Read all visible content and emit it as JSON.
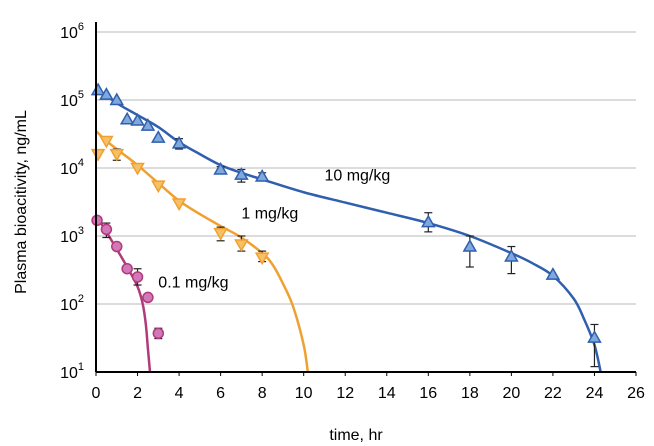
{
  "chart_data": {
    "type": "scatter",
    "title": "",
    "xlabel": "time, hr",
    "ylabel": "Plasma bioacitivity, ng/mL",
    "xlim": [
      0,
      26
    ],
    "ylim": [
      10,
      1000000
    ],
    "yscale": "log",
    "x_ticks": [
      "0",
      "2",
      "4",
      "6",
      "8",
      "10",
      "12",
      "14",
      "16",
      "18",
      "20",
      "22",
      "24",
      "26"
    ],
    "y_ticks": [
      {
        "base": "10",
        "exp": "1",
        "value": 10
      },
      {
        "base": "10",
        "exp": "2",
        "value": 100
      },
      {
        "base": "10",
        "exp": "3",
        "value": 1000
      },
      {
        "base": "10",
        "exp": "4",
        "value": 10000
      },
      {
        "base": "10",
        "exp": "5",
        "value": 100000
      },
      {
        "base": "10",
        "exp": "6",
        "value": 1000000
      }
    ],
    "grid": "horizontal",
    "series": [
      {
        "name": "10 mg/kg",
        "color": "#2f5fae",
        "marker": "triangle-up",
        "marker_fill": "#7fa8dc",
        "points": [
          {
            "x": 0.1,
            "y": 140000
          },
          {
            "x": 0.5,
            "y": 120000
          },
          {
            "x": 1,
            "y": 100000
          },
          {
            "x": 1.5,
            "y": 52000
          },
          {
            "x": 2,
            "y": 50000
          },
          {
            "x": 2.5,
            "y": 42000
          },
          {
            "x": 3,
            "y": 28000
          },
          {
            "x": 4,
            "y": 23000,
            "err_lo": 19000,
            "err_hi": 27000
          },
          {
            "x": 6,
            "y": 9500,
            "err_lo": 8500,
            "err_hi": 10500
          },
          {
            "x": 7,
            "y": 8000,
            "err_lo": 6200,
            "err_hi": 9500
          },
          {
            "x": 8,
            "y": 7500,
            "err_lo": 6500,
            "err_hi": 8500
          },
          {
            "x": 16,
            "y": 1600,
            "err_lo": 1150,
            "err_hi": 2200
          },
          {
            "x": 18,
            "y": 700,
            "err_lo": 350,
            "err_hi": 1000
          },
          {
            "x": 20,
            "y": 500,
            "err_lo": 280,
            "err_hi": 700
          },
          {
            "x": 22,
            "y": 270
          },
          {
            "x": 24,
            "y": 32,
            "err_lo": 12,
            "err_hi": 50
          }
        ],
        "fit": [
          [
            0,
            150000
          ],
          [
            1,
            90000
          ],
          [
            2,
            60000
          ],
          [
            3,
            40000
          ],
          [
            4,
            24000
          ],
          [
            5,
            16000
          ],
          [
            6,
            11000
          ],
          [
            7,
            8500
          ],
          [
            8,
            6800
          ],
          [
            10,
            4400
          ],
          [
            12,
            3100
          ],
          [
            14,
            2200
          ],
          [
            16,
            1550
          ],
          [
            18,
            1000
          ],
          [
            20,
            560
          ],
          [
            21,
            400
          ],
          [
            22,
            260
          ],
          [
            23,
            120
          ],
          [
            23.5,
            60
          ],
          [
            24,
            25
          ],
          [
            24.3,
            10
          ]
        ]
      },
      {
        "name": "1 mg/kg",
        "color": "#f0a030",
        "marker": "triangle-down",
        "marker_fill": "#f7c065",
        "points": [
          {
            "x": 0.1,
            "y": 16000
          },
          {
            "x": 0.5,
            "y": 25000
          },
          {
            "x": 1,
            "y": 16000,
            "err_lo": 13000,
            "err_hi": 19000
          },
          {
            "x": 2,
            "y": 10000
          },
          {
            "x": 3,
            "y": 5500
          },
          {
            "x": 4,
            "y": 3000
          },
          {
            "x": 6,
            "y": 1100,
            "err_lo": 850,
            "err_hi": 1350
          },
          {
            "x": 7,
            "y": 750,
            "err_lo": 600,
            "err_hi": 1000
          },
          {
            "x": 8,
            "y": 480,
            "err_lo": 420,
            "err_hi": 600
          }
        ],
        "fit": [
          [
            0,
            35000
          ],
          [
            0.5,
            25000
          ],
          [
            1,
            19000
          ],
          [
            2,
            11000
          ],
          [
            3,
            6000
          ],
          [
            4,
            3300
          ],
          [
            5,
            2100
          ],
          [
            6,
            1400
          ],
          [
            7,
            950
          ],
          [
            8,
            560
          ],
          [
            8.5,
            380
          ],
          [
            9,
            200
          ],
          [
            9.5,
            90
          ],
          [
            10,
            25
          ],
          [
            10.2,
            10
          ]
        ]
      },
      {
        "name": "0.1 mg/kg",
        "color": "#b03a7a",
        "marker": "circle",
        "marker_fill": "#d078b8",
        "points": [
          {
            "x": 0.05,
            "y": 1700
          },
          {
            "x": 0.5,
            "y": 1250,
            "err_lo": 950,
            "err_hi": 1550
          },
          {
            "x": 1,
            "y": 700
          },
          {
            "x": 1.5,
            "y": 330
          },
          {
            "x": 2,
            "y": 250,
            "err_lo": 190,
            "err_hi": 330
          },
          {
            "x": 2.5,
            "y": 125,
            "err_lo": 115,
            "err_hi": 135
          },
          {
            "x": 3,
            "y": 37,
            "err_lo": 31,
            "err_hi": 44
          }
        ],
        "fit": [
          [
            0,
            2000
          ],
          [
            0.5,
            1150
          ],
          [
            1,
            640
          ],
          [
            1.5,
            350
          ],
          [
            2,
            180
          ],
          [
            2.25,
            100
          ],
          [
            2.4,
            50
          ],
          [
            2.5,
            22
          ],
          [
            2.6,
            10
          ]
        ]
      }
    ],
    "annotations": [
      {
        "text": "10 mg/kg",
        "x": 11,
        "y": 6500
      },
      {
        "text": "1 mg/kg",
        "x": 7,
        "y": 1800
      },
      {
        "text": "0.1 mg/kg",
        "x": 3,
        "y": 175
      }
    ]
  }
}
